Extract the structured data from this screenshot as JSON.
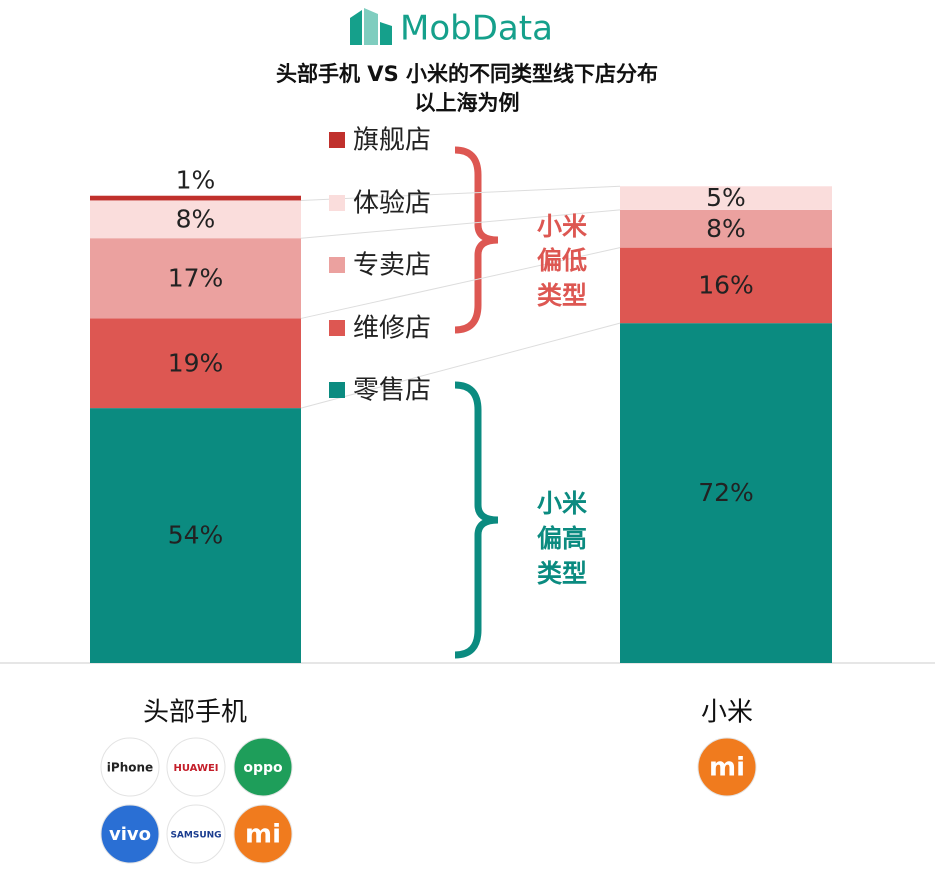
{
  "header": {
    "brand": "MobData"
  },
  "chart_data": {
    "type": "stacked-bar",
    "title": "头部手机 VS 小米的不同类型线下店分布",
    "subtitle": "以上海为例",
    "categories": [
      "头部手机",
      "小米"
    ],
    "ylim": [
      0,
      100
    ],
    "series": [
      {
        "name": "零售店",
        "color": "#0b8b80",
        "values": [
          54,
          72
        ],
        "value_labels": [
          "54%",
          "72%"
        ]
      },
      {
        "name": "维修店",
        "color": "#dd5752",
        "values": [
          19,
          16
        ],
        "value_labels": [
          "19%",
          "16%"
        ]
      },
      {
        "name": "专卖店",
        "color": "#eba19f",
        "values": [
          17,
          8
        ],
        "value_labels": [
          "17%",
          "8%"
        ]
      },
      {
        "name": "体验店",
        "color": "#fadddc",
        "values": [
          8,
          5
        ],
        "value_labels": [
          "8%",
          "5%"
        ]
      },
      {
        "name": "旗舰店",
        "color": "#c0302c",
        "values": [
          1,
          null
        ],
        "value_labels": [
          "1%",
          null
        ]
      }
    ],
    "annotations": [
      {
        "lines": [
          "小米",
          "偏低",
          "类型"
        ],
        "color": "#dd5752"
      },
      {
        "lines": [
          "小米",
          "偏高",
          "类型"
        ],
        "color": "#0b8b80"
      }
    ]
  },
  "logos": {
    "head": [
      "iPhone",
      "HUAWEI",
      "oppo",
      "vivo",
      "SAMSUNG",
      "mi"
    ],
    "xiaomi": [
      "mi"
    ]
  }
}
